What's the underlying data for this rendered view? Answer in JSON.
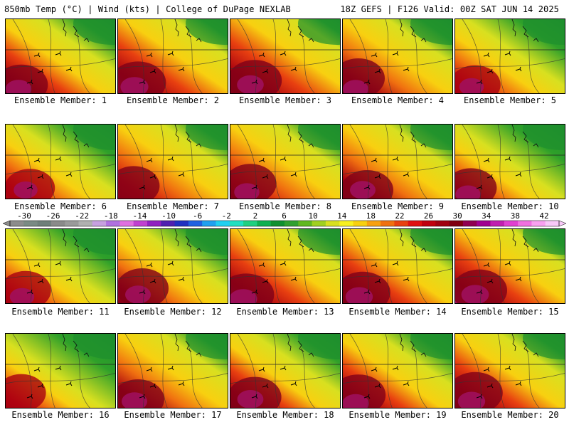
{
  "header": {
    "left": "850mb Temp (°C) | Wind (kts) | College of DuPage NEXLAB",
    "right": "18Z GEFS | F126 Valid: 00Z SAT JUN 14 2025"
  },
  "members": [
    {
      "label": "Ensemble Member: 1",
      "warm": 0.78,
      "cool": 0.35,
      "hot": true
    },
    {
      "label": "Ensemble Member: 2",
      "warm": 0.95,
      "cool": 0.25,
      "hot": true
    },
    {
      "label": "Ensemble Member: 3",
      "warm": 0.85,
      "cool": 0.2,
      "hot": true
    },
    {
      "label": "Ensemble Member: 4",
      "warm": 0.75,
      "cool": 0.3,
      "hot": true
    },
    {
      "label": "Ensemble Member: 5",
      "warm": 0.65,
      "cool": 0.45,
      "hot": true
    },
    {
      "label": "Ensemble Member: 6",
      "warm": 0.6,
      "cool": 0.45,
      "hot": true
    },
    {
      "label": "Ensemble Member: 7",
      "warm": 0.7,
      "cool": 0.3,
      "hot": false
    },
    {
      "label": "Ensemble Member: 8",
      "warm": 0.72,
      "cool": 0.3,
      "hot": true
    },
    {
      "label": "Ensemble Member: 9",
      "warm": 0.75,
      "cool": 0.3,
      "hot": true
    },
    {
      "label": "Ensemble Member: 10",
      "warm": 0.7,
      "cool": 0.5,
      "hot": true
    },
    {
      "label": "Ensemble Member: 11",
      "warm": 0.65,
      "cool": 0.5,
      "hot": true
    },
    {
      "label": "Ensemble Member: 12",
      "warm": 0.75,
      "cool": 0.4,
      "hot": true
    },
    {
      "label": "Ensemble Member: 13",
      "warm": 0.95,
      "cool": 0.25,
      "hot": true
    },
    {
      "label": "Ensemble Member: 14",
      "warm": 0.9,
      "cool": 0.3,
      "hot": true
    },
    {
      "label": "Ensemble Member: 15",
      "warm": 0.92,
      "cool": 0.25,
      "hot": true
    },
    {
      "label": "Ensemble Member: 16",
      "warm": 0.55,
      "cool": 0.55,
      "hot": false
    },
    {
      "label": "Ensemble Member: 17",
      "warm": 0.75,
      "cool": 0.3,
      "hot": true
    },
    {
      "label": "Ensemble Member: 18",
      "warm": 0.8,
      "cool": 0.4,
      "hot": true
    },
    {
      "label": "Ensemble Member: 19",
      "warm": 0.85,
      "cool": 0.35,
      "hot": true
    },
    {
      "label": "Ensemble Member: 20",
      "warm": 0.9,
      "cool": 0.3,
      "hot": true
    }
  ],
  "colorbar": {
    "unit": "°C",
    "tick_labels": [
      "-30",
      "-26",
      "-22",
      "-18",
      "-14",
      "-10",
      "-6",
      "-2",
      "2",
      "6",
      "10",
      "14",
      "18",
      "22",
      "26",
      "30",
      "34",
      "38",
      "42"
    ],
    "colors": [
      "#8c8c8c",
      "#7a8a84",
      "#6f7f7a",
      "#8a8a8a",
      "#9a9a9a",
      "#b0b0b0",
      "#c8a0e0",
      "#b070e0",
      "#e070e0",
      "#c040d0",
      "#9020c0",
      "#5020b0",
      "#2030c0",
      "#2060e0",
      "#20a0f0",
      "#20d0f0",
      "#20e0c0",
      "#20d080",
      "#10b050",
      "#109030",
      "#30a030",
      "#60b820",
      "#a0d020",
      "#d8e020",
      "#f8f020",
      "#f8d010",
      "#f8a010",
      "#f07010",
      "#e84010",
      "#e01010",
      "#c00010",
      "#a00010",
      "#800010",
      "#900050",
      "#a00090",
      "#c020b0",
      "#e040d0",
      "#f070e0",
      "#f8a0f0",
      "#f8c8f8"
    ]
  }
}
